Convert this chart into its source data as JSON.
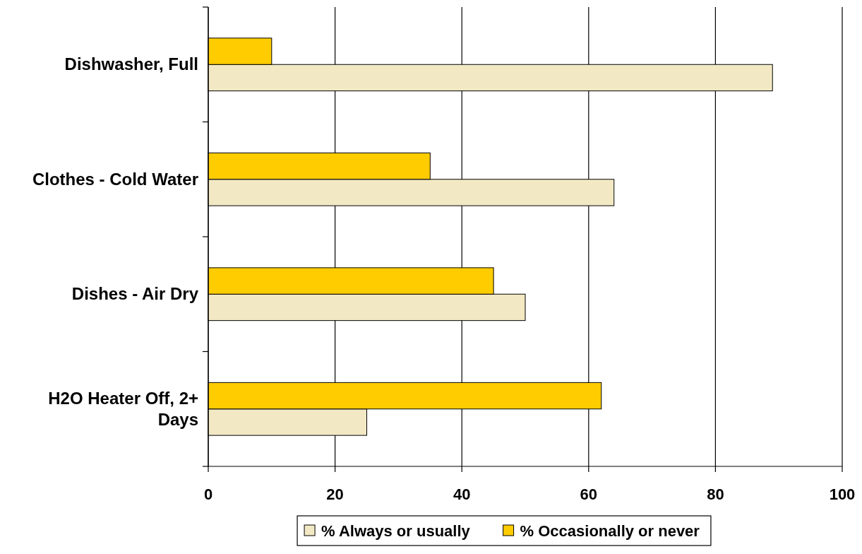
{
  "chart_data": {
    "type": "bar",
    "orientation": "horizontal",
    "categories": [
      "Dishwasher, Full",
      "Clothes - Cold Water",
      "Dishes -  Air Dry",
      "H2O Heater Off, 2+ Days"
    ],
    "series": [
      {
        "name": "% Always or usually",
        "color": "#f2e9c4",
        "values": [
          89,
          64,
          50,
          25
        ]
      },
      {
        "name": "% Occasionally or never",
        "color": "#ffcc00",
        "values": [
          10,
          35,
          45,
          62
        ]
      }
    ],
    "xlim": [
      0,
      100
    ],
    "xticks": [
      0,
      20,
      40,
      60,
      80,
      100
    ],
    "grid": "x",
    "legend": "bottom"
  }
}
